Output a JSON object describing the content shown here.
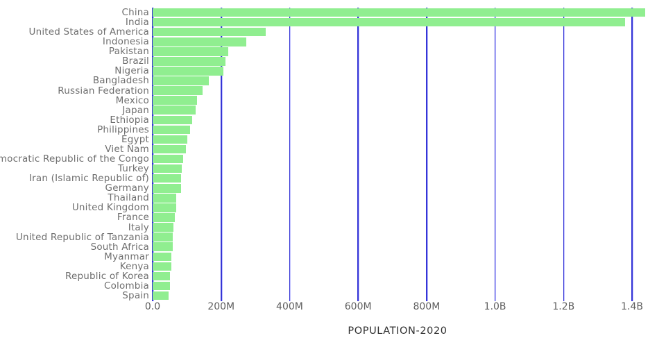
{
  "chart_data": {
    "type": "bar",
    "orientation": "horizontal",
    "title": "",
    "xlabel": "POPULATION-2020",
    "ylabel": "",
    "legend": false,
    "grid": true,
    "xlim_millions": [
      0,
      1500
    ],
    "categories": [
      "China",
      "India",
      "United States of America",
      "Indonesia",
      "Pakistan",
      "Brazil",
      "Nigeria",
      "Bangladesh",
      "Russian Federation",
      "Mexico",
      "Japan",
      "Ethiopia",
      "Philippines",
      "Egypt",
      "Viet Nam",
      "Democratic Republic of the Congo",
      "Turkey",
      "Iran (Islamic Republic of)",
      "Germany",
      "Thailand",
      "United Kingdom",
      "France",
      "Italy",
      "United Republic of Tanzania",
      "South Africa",
      "Myanmar",
      "Kenya",
      "Republic of Korea",
      "Colombia",
      "Spain"
    ],
    "values_millions": [
      1439.3,
      1380.0,
      331.0,
      273.5,
      220.9,
      212.6,
      206.1,
      164.7,
      145.9,
      128.9,
      126.5,
      115.0,
      109.6,
      102.3,
      97.3,
      89.6,
      84.3,
      84.0,
      83.8,
      69.8,
      67.9,
      65.3,
      60.5,
      59.7,
      59.3,
      54.4,
      53.8,
      51.3,
      50.9,
      46.8
    ],
    "x_ticks": [
      {
        "value": 0,
        "label": "0.0"
      },
      {
        "value": 200,
        "label": "200M"
      },
      {
        "value": 400,
        "label": "400M"
      },
      {
        "value": 600,
        "label": "600M"
      },
      {
        "value": 800,
        "label": "800M"
      },
      {
        "value": 1000,
        "label": "1.0B"
      },
      {
        "value": 1200,
        "label": "1.2B"
      },
      {
        "value": 1400,
        "label": "1.4B"
      }
    ],
    "colors": {
      "bar": "#90EE90",
      "gridline": "#3535d6",
      "category_label": "#6e6e6e",
      "tick_label": "#5e5e5e",
      "axis_title": "#303030",
      "background": "#ffffff"
    }
  }
}
